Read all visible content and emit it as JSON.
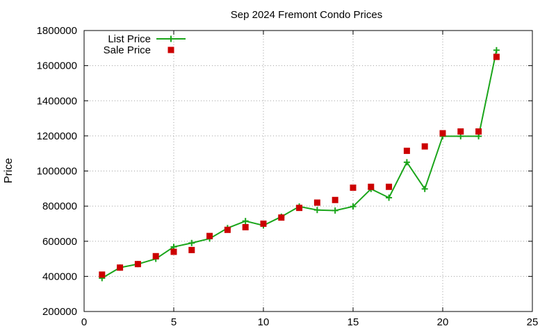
{
  "chart_data": {
    "type": "line",
    "title": "Sep 2024 Fremont Condo Prices",
    "xlabel": "",
    "ylabel": "Price",
    "xlim": [
      0,
      25
    ],
    "ylim": [
      200000,
      1800000
    ],
    "xticks": [
      0,
      5,
      10,
      15,
      20,
      25
    ],
    "yticks": [
      200000,
      400000,
      600000,
      800000,
      1000000,
      1200000,
      1400000,
      1600000,
      1800000
    ],
    "grid": true,
    "legend_position": "top-left",
    "series": [
      {
        "name": "List Price",
        "style": "line-plus",
        "color": "#1aa51a",
        "x": [
          1,
          2,
          3,
          4,
          5,
          6,
          7,
          8,
          9,
          10,
          11,
          12,
          13,
          14,
          15,
          16,
          17,
          18,
          19,
          20,
          21,
          22,
          23
        ],
        "y": [
          390000,
          450000,
          470000,
          500000,
          568000,
          590000,
          615000,
          675000,
          715000,
          690000,
          740000,
          798000,
          778000,
          775000,
          798000,
          898000,
          848000,
          1050000,
          898000,
          1198000,
          1198000,
          1198000,
          1688000
        ]
      },
      {
        "name": "Sale Price",
        "style": "square",
        "color": "#cc0000",
        "x": [
          1,
          2,
          3,
          4,
          5,
          6,
          7,
          8,
          9,
          10,
          11,
          12,
          13,
          14,
          15,
          16,
          17,
          18,
          19,
          20,
          21,
          22,
          23
        ],
        "y": [
          410000,
          450000,
          470000,
          515000,
          540000,
          550000,
          630000,
          665000,
          680000,
          700000,
          735000,
          790000,
          820000,
          835000,
          905000,
          910000,
          910000,
          1115000,
          1140000,
          1215000,
          1225000,
          1225000,
          1650000
        ]
      }
    ]
  }
}
